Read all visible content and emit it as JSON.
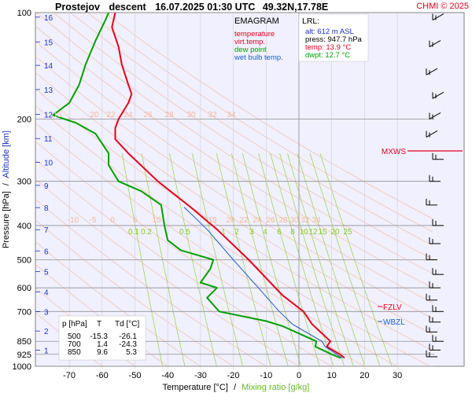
{
  "header": {
    "station": "Prostejov",
    "mode": "descent",
    "datetime": "16.07.2025 01:30 UTC",
    "coords": "49.32N,17.78E",
    "credit": "CHMI © 2025"
  },
  "legend": {
    "title": "EMAGRAM",
    "items": [
      {
        "label": "temperature",
        "color": "#e8001c"
      },
      {
        "label": "virt.temp.",
        "color": "#e8001c"
      },
      {
        "label": "dew point",
        "color": "#00a000"
      },
      {
        "label": "wet bulb temp.",
        "color": "#2060c0"
      }
    ]
  },
  "lrl": {
    "title": "LRL:",
    "lines": [
      {
        "text": "alt: 612 m ASL",
        "color": "#1a33cc"
      },
      {
        "text": "press: 947.7 hPa",
        "color": "#000000"
      },
      {
        "text": "temp: 13.9 °C",
        "color": "#e8001c"
      },
      {
        "text": "dwpt: 12.7 °C",
        "color": "#00a000"
      }
    ]
  },
  "table": {
    "headers": [
      "p [hPa]",
      "T",
      "Td [°C]"
    ],
    "rows": [
      [
        "500",
        "-15.3",
        "-26.1"
      ],
      [
        "700",
        "1.4",
        "-24.3"
      ],
      [
        "850",
        "9.6",
        "5.3"
      ]
    ]
  },
  "axes": {
    "x_label": "Temperature [°C]",
    "x_label_sep": "/",
    "x_label2": "Mixing ratio [g/kg]",
    "y_label": "Pressure [hPa]",
    "y_label_sep": "/",
    "y_label2": "Altitude [km]"
  },
  "markers": [
    {
      "label": "MXWS",
      "color": "#e8001c"
    },
    {
      "label": "FZLV",
      "color": "#e8001c"
    },
    {
      "label": "WBZL",
      "color": "#2060c0"
    }
  ],
  "colors": {
    "plot_bg": "#f0f0ff",
    "temperature": "#e8001c",
    "dewpoint": "#00a000",
    "wetbulb": "#2060c0",
    "dry_adiabat": "#f5b89a",
    "mixing_ratio": "#9ad040",
    "isotherm": "#c0c0c0"
  },
  "chart_data": {
    "type": "line",
    "title": "Prostejov descent 16.07.2025 01:30 UTC 49.32N,17.78E",
    "xlabel": "Temperature [°C]",
    "ylabel": "Pressure [hPa]",
    "xlim": [
      -80,
      40
    ],
    "ylim": [
      1000,
      100
    ],
    "y_scale": "log",
    "grid": true,
    "x_ticks": [
      -70,
      -60,
      -50,
      -40,
      -30,
      -20,
      -10,
      0,
      10,
      20,
      30
    ],
    "y_ticks": [
      100,
      200,
      300,
      400,
      500,
      600,
      700,
      850,
      925,
      1000
    ],
    "altitude_ticks": [
      {
        "km": 1,
        "p": 900
      },
      {
        "km": 2,
        "p": 795
      },
      {
        "km": 3,
        "p": 701
      },
      {
        "km": 4,
        "p": 616
      },
      {
        "km": 5,
        "p": 540
      },
      {
        "km": 6,
        "p": 472
      },
      {
        "km": 7,
        "p": 411
      },
      {
        "km": 8,
        "p": 356
      },
      {
        "km": 9,
        "p": 308
      },
      {
        "km": 10,
        "p": 265
      },
      {
        "km": 11,
        "p": 227
      },
      {
        "km": 12,
        "p": 194
      },
      {
        "km": 13,
        "p": 165
      },
      {
        "km": 14,
        "p": 141
      },
      {
        "km": 15,
        "p": 121
      },
      {
        "km": 16,
        "p": 103
      }
    ],
    "dry_adiabat_labels": [
      "15",
      "20",
      "22",
      "24",
      "26",
      "28",
      "30",
      "32",
      "34"
    ],
    "mixing_ratio_labels": [
      "0.1",
      "0.2",
      "0.5",
      "1",
      "2",
      "3",
      "4",
      "6",
      "8",
      "10",
      "12",
      "15",
      "20",
      "25"
    ],
    "series": [
      {
        "name": "temperature",
        "points": [
          [
            13.9,
            947.7
          ],
          [
            12.5,
            925
          ],
          [
            8.5,
            880
          ],
          [
            9.6,
            850
          ],
          [
            4,
            760
          ],
          [
            1.4,
            700
          ],
          [
            -5,
            630
          ],
          [
            -15.3,
            500
          ],
          [
            -25,
            410
          ],
          [
            -33,
            355
          ],
          [
            -43,
            300
          ],
          [
            -52,
            250
          ],
          [
            -56,
            228
          ],
          [
            -56,
            212
          ],
          [
            -55,
            200
          ],
          [
            -52,
            180
          ],
          [
            -51,
            170
          ],
          [
            -52,
            160
          ],
          [
            -54,
            140
          ],
          [
            -55,
            125
          ],
          [
            -57,
            110
          ],
          [
            -56,
            100
          ]
        ]
      },
      {
        "name": "dew point",
        "points": [
          [
            12.7,
            947.7
          ],
          [
            10,
            925
          ],
          [
            5,
            880
          ],
          [
            5.3,
            850
          ],
          [
            -5,
            770
          ],
          [
            -10,
            745
          ],
          [
            -24.3,
            700
          ],
          [
            -28,
            640
          ],
          [
            -25,
            600
          ],
          [
            -30,
            580
          ],
          [
            -27,
            530
          ],
          [
            -26.1,
            500
          ],
          [
            -36,
            470
          ],
          [
            -40,
            440
          ],
          [
            -41,
            400
          ],
          [
            -42,
            350
          ],
          [
            -48,
            320
          ],
          [
            -55,
            300
          ],
          [
            -58,
            270
          ],
          [
            -58,
            250
          ],
          [
            -62,
            220
          ],
          [
            -68,
            205
          ],
          [
            -75,
            195
          ],
          [
            -70,
            180
          ],
          [
            -67,
            160
          ],
          [
            -65,
            140
          ],
          [
            -62,
            120
          ],
          [
            -59,
            105
          ],
          [
            -58,
            100
          ]
        ]
      },
      {
        "name": "wet bulb temp.",
        "points": [
          [
            13.2,
            947.7
          ],
          [
            11.5,
            925
          ],
          [
            8,
            880
          ],
          [
            7,
            850
          ],
          [
            -2,
            760
          ],
          [
            -6,
            700
          ],
          [
            -11,
            620
          ],
          [
            -20,
            500
          ],
          [
            -28,
            410
          ],
          [
            -35,
            355
          ]
        ]
      }
    ]
  }
}
